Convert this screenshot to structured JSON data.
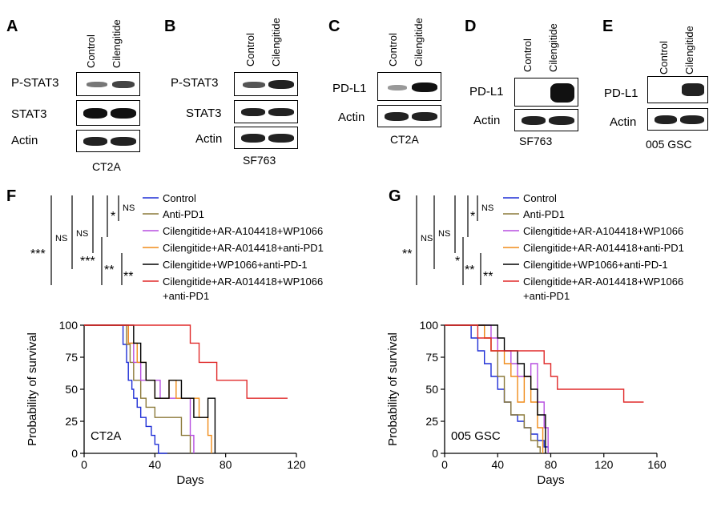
{
  "panels": {
    "A": {
      "letter": "A",
      "cols": [
        "Control",
        "Cilengitide"
      ],
      "rows": [
        "P-STAT3",
        "STAT3",
        "Actin"
      ],
      "cell": "CT2A"
    },
    "B": {
      "letter": "B",
      "cols": [
        "Control",
        "Cilengitide"
      ],
      "rows": [
        "P-STAT3",
        "STAT3",
        "Actin"
      ],
      "cell": "SF763"
    },
    "C": {
      "letter": "C",
      "cols": [
        "Control",
        "Cilengitide"
      ],
      "rows": [
        "PD-L1",
        "Actin"
      ],
      "cell": "CT2A"
    },
    "D": {
      "letter": "D",
      "cols": [
        "Control",
        "Cilengitide"
      ],
      "rows": [
        "PD-L1",
        "Actin"
      ],
      "cell": "SF763"
    },
    "E": {
      "letter": "E",
      "cols": [
        "Control",
        "Cilengitide"
      ],
      "rows": [
        "PD-L1",
        "Actin"
      ],
      "cell": "005 GSC"
    }
  },
  "legend": [
    "Control",
    "Anti-PD1",
    "Cilengitide+AR-A104418+WP1066",
    "Cilengitide+AR-A014418+anti-PD1",
    "Cilengitide+WP1066+anti-PD-1",
    "Cilengitide+AR-A014418+WP1066",
    "+anti-PD1"
  ],
  "colors": {
    "control": "#1f2fd6",
    "antipd1": "#8c7a3a",
    "aw": "#b74fe0",
    "aa": "#f08c1a",
    "wa": "#000000",
    "all": "#e02a2a"
  },
  "F": {
    "letter": "F",
    "sig": [
      "NS",
      "*",
      "NS",
      "NS",
      "***",
      "***",
      "**",
      "**"
    ],
    "label": "CT2A"
  },
  "G": {
    "letter": "G",
    "sig": [
      "NS",
      "*",
      "NS",
      "NS",
      "**",
      "*",
      "**",
      "**"
    ],
    "label": "005 GSC"
  },
  "chart_data": [
    {
      "type": "line",
      "title": "",
      "xlabel": "Days",
      "ylabel": "Probability of survival",
      "xlim": [
        0,
        120
      ],
      "ylim": [
        0,
        100
      ],
      "xticks": [
        "0",
        "40",
        "80",
        "120"
      ],
      "yticks": [
        "0",
        "25",
        "50",
        "75",
        "100"
      ],
      "series": [
        {
          "name": "Control",
          "color": "#1f2fd6",
          "x": [
            0,
            22,
            24,
            25,
            27,
            28,
            30,
            32,
            35,
            38,
            40,
            42,
            47
          ],
          "y": [
            100,
            85,
            71,
            57,
            50,
            43,
            36,
            28,
            21,
            14,
            7,
            0,
            0
          ]
        },
        {
          "name": "Anti-PD1",
          "color": "#8c7a3a",
          "x": [
            0,
            24,
            26,
            28,
            32,
            35,
            40,
            45,
            55,
            60
          ],
          "y": [
            100,
            85,
            71,
            57,
            43,
            36,
            28,
            28,
            14,
            0
          ]
        },
        {
          "name": "Cilengitide+AR-A104418+WP1066",
          "color": "#b74fe0",
          "x": [
            0,
            25,
            28,
            32,
            38,
            43,
            50,
            60,
            62
          ],
          "y": [
            100,
            86,
            71,
            57,
            57,
            43,
            43,
            14,
            0
          ]
        },
        {
          "name": "Cilengitide+AR-A014418+anti-PD1",
          "color": "#f08c1a",
          "x": [
            0,
            25,
            30,
            35,
            40,
            48,
            52,
            60,
            65,
            70,
            72
          ],
          "y": [
            100,
            86,
            71,
            57,
            43,
            57,
            43,
            43,
            28,
            14,
            0
          ]
        },
        {
          "name": "Cilengitide+WP1066+anti-PD-1",
          "color": "#000000",
          "x": [
            0,
            28,
            32,
            35,
            40,
            48,
            55,
            62,
            70,
            74
          ],
          "y": [
            100,
            86,
            71,
            57,
            43,
            57,
            43,
            28,
            43,
            0
          ]
        },
        {
          "name": "Cilengitide+AR-A014418+WP1066 +anti-PD1",
          "color": "#e02a2a",
          "x": [
            0,
            45,
            60,
            65,
            75,
            92,
            115
          ],
          "y": [
            100,
            100,
            86,
            71,
            57,
            43,
            43
          ]
        }
      ]
    },
    {
      "type": "line",
      "title": "",
      "xlabel": "Days",
      "ylabel": "Probability of survival",
      "xlim": [
        0,
        160
      ],
      "ylim": [
        0,
        100
      ],
      "xticks": [
        "0",
        "40",
        "80",
        "120",
        "160"
      ],
      "yticks": [
        "0",
        "25",
        "50",
        "75",
        "100"
      ],
      "series": [
        {
          "name": "Control",
          "color": "#1f2fd6",
          "x": [
            0,
            20,
            25,
            30,
            35,
            40,
            45,
            50,
            55,
            60,
            65,
            70,
            75,
            78
          ],
          "y": [
            100,
            90,
            80,
            70,
            60,
            50,
            40,
            30,
            25,
            20,
            15,
            10,
            5,
            0
          ]
        },
        {
          "name": "Anti-PD1",
          "color": "#8c7a3a",
          "x": [
            0,
            30,
            35,
            40,
            45,
            50,
            55,
            60,
            65,
            70,
            72
          ],
          "y": [
            100,
            90,
            80,
            60,
            40,
            30,
            30,
            20,
            10,
            5,
            0
          ]
        },
        {
          "name": "Cilengitide+AR-A104418+WP1066",
          "color": "#b74fe0",
          "x": [
            0,
            35,
            40,
            50,
            55,
            65,
            70,
            75,
            78
          ],
          "y": [
            100,
            90,
            80,
            70,
            60,
            70,
            40,
            20,
            0
          ]
        },
        {
          "name": "Cilengitide+AR-A014418+anti-PD1",
          "color": "#f08c1a",
          "x": [
            0,
            30,
            35,
            45,
            50,
            55,
            60,
            65,
            70,
            74
          ],
          "y": [
            100,
            90,
            80,
            70,
            60,
            40,
            60,
            40,
            20,
            0
          ]
        },
        {
          "name": "Cilengitide+WP1066+anti-PD-1",
          "color": "#000000",
          "x": [
            0,
            40,
            45,
            55,
            60,
            65,
            70,
            76
          ],
          "y": [
            100,
            90,
            80,
            70,
            60,
            50,
            30,
            0
          ]
        },
        {
          "name": "Cilengitide+AR-A014418+WP1066 +anti-PD1",
          "color": "#e02a2a",
          "x": [
            0,
            25,
            35,
            45,
            75,
            80,
            85,
            100,
            135,
            150
          ],
          "y": [
            100,
            90,
            80,
            80,
            70,
            60,
            50,
            50,
            40,
            40
          ]
        }
      ]
    }
  ]
}
